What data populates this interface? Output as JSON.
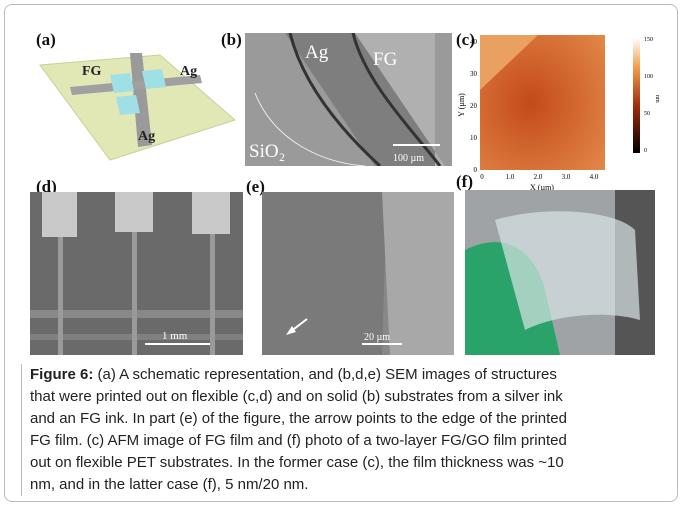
{
  "panels": {
    "a": {
      "label": "(a)",
      "texts": [
        "FG",
        "Ag",
        "Ag"
      ]
    },
    "b": {
      "label": "(b)",
      "texts": [
        "Ag",
        "FG",
        "SiO₂"
      ],
      "scale": "100 µm"
    },
    "c": {
      "label": "(c)",
      "y_axis": "Y (µm)",
      "x_axis": "X (µm)",
      "x_ticks": [
        "0",
        "1.0",
        "2.0",
        "3.0",
        "4.0"
      ],
      "y_ticks": [
        "0",
        "10",
        "20",
        "30",
        "40"
      ],
      "colorbar_ticks": [
        "150",
        "100",
        "50",
        "0"
      ],
      "colorbar_unit": "nm"
    },
    "d": {
      "label": "(d)",
      "scale": "1 mm"
    },
    "e": {
      "label": "(e)",
      "scale": "20 µm"
    },
    "f": {
      "label": "(f)"
    }
  },
  "caption": {
    "label": "Figure 6:",
    "lines": [
      " (a) A schematic representation, and (b,d,e) SEM images of structures",
      "that were printed out on flexible (c,d) and on solid (b) substrates from a silver ink",
      "and an FG ink. In part (e) of the figure, the arrow points to the edge of the printed",
      "FG film. (c) AFM image of FG film and (f) photo of a two-layer FG/GO film printed",
      "out on flexible PET substrates. In the former case (c), the film thickness was ~10",
      "nm, and in the latter case (f), 5 nm/20 nm."
    ]
  }
}
